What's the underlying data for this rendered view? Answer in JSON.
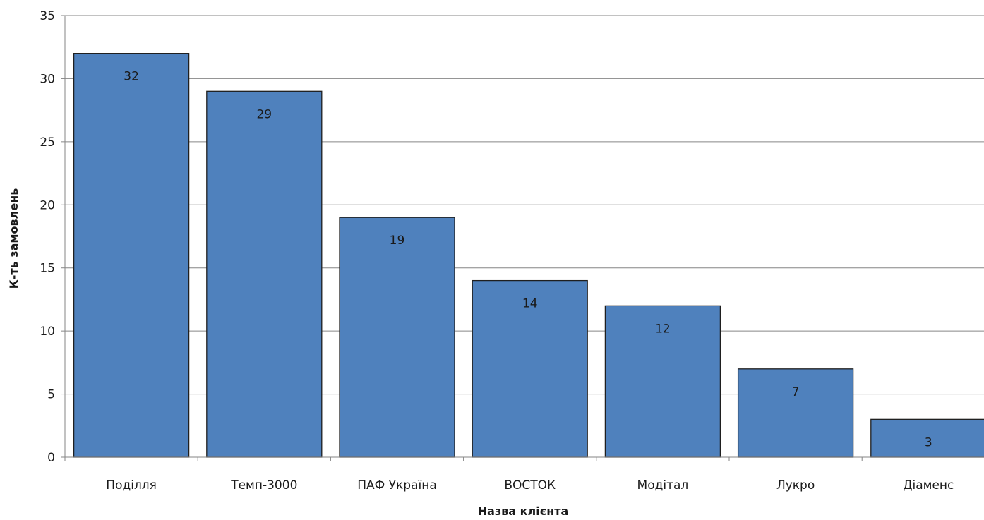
{
  "chart_data": {
    "type": "bar",
    "title": "",
    "xlabel": "Назва клієнта",
    "ylabel": "К-ть замовлень",
    "categories": [
      "Поділля",
      "Темп-3000",
      "ПАФ Україна",
      "ВОСТОК",
      "Модітал",
      "Лукро",
      "Діаменс"
    ],
    "values": [
      32,
      29,
      19,
      14,
      12,
      7,
      3
    ],
    "ylim": [
      0,
      35
    ],
    "yticks": [
      0,
      5,
      10,
      15,
      20,
      25,
      30,
      35
    ],
    "grid": true,
    "legend": "none",
    "data_labels": "inside-end",
    "colors": {
      "bar": "#4f81bd",
      "bar_border": "#1f1f1f",
      "grid": "#868686"
    }
  }
}
